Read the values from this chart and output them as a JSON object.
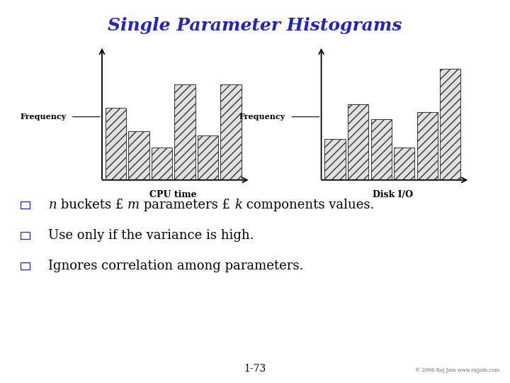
{
  "title": "Single Parameter Histograms",
  "title_color": "#2222cc",
  "title_fontsize": 18,
  "title_weight": "bold",
  "chart1_bars": [
    0.62,
    0.42,
    0.28,
    0.82,
    0.38,
    0.82
  ],
  "chart1_xlabel": "CPU time",
  "chart1_ylabel": "Frequency",
  "chart2_bars": [
    0.35,
    0.65,
    0.52,
    0.28,
    0.58,
    0.95
  ],
  "chart2_xlabel": "Disk I/O",
  "chart2_ylabel": "Frequency",
  "footer": "© 2006 Raj Jain www.rajjain.com",
  "page_num": "1-73",
  "bar_facecolor": "#e0e0e0",
  "bar_edgecolor": "#333333",
  "bar_hatch": "///",
  "bullet_color": "#3333bb",
  "bullet_fontsize": 13,
  "text_fontsize": 13,
  "xlabel_fontsize": 9,
  "ylabel_fontsize": 8,
  "footer_fontsize": 5,
  "pagenum_fontsize": 10
}
